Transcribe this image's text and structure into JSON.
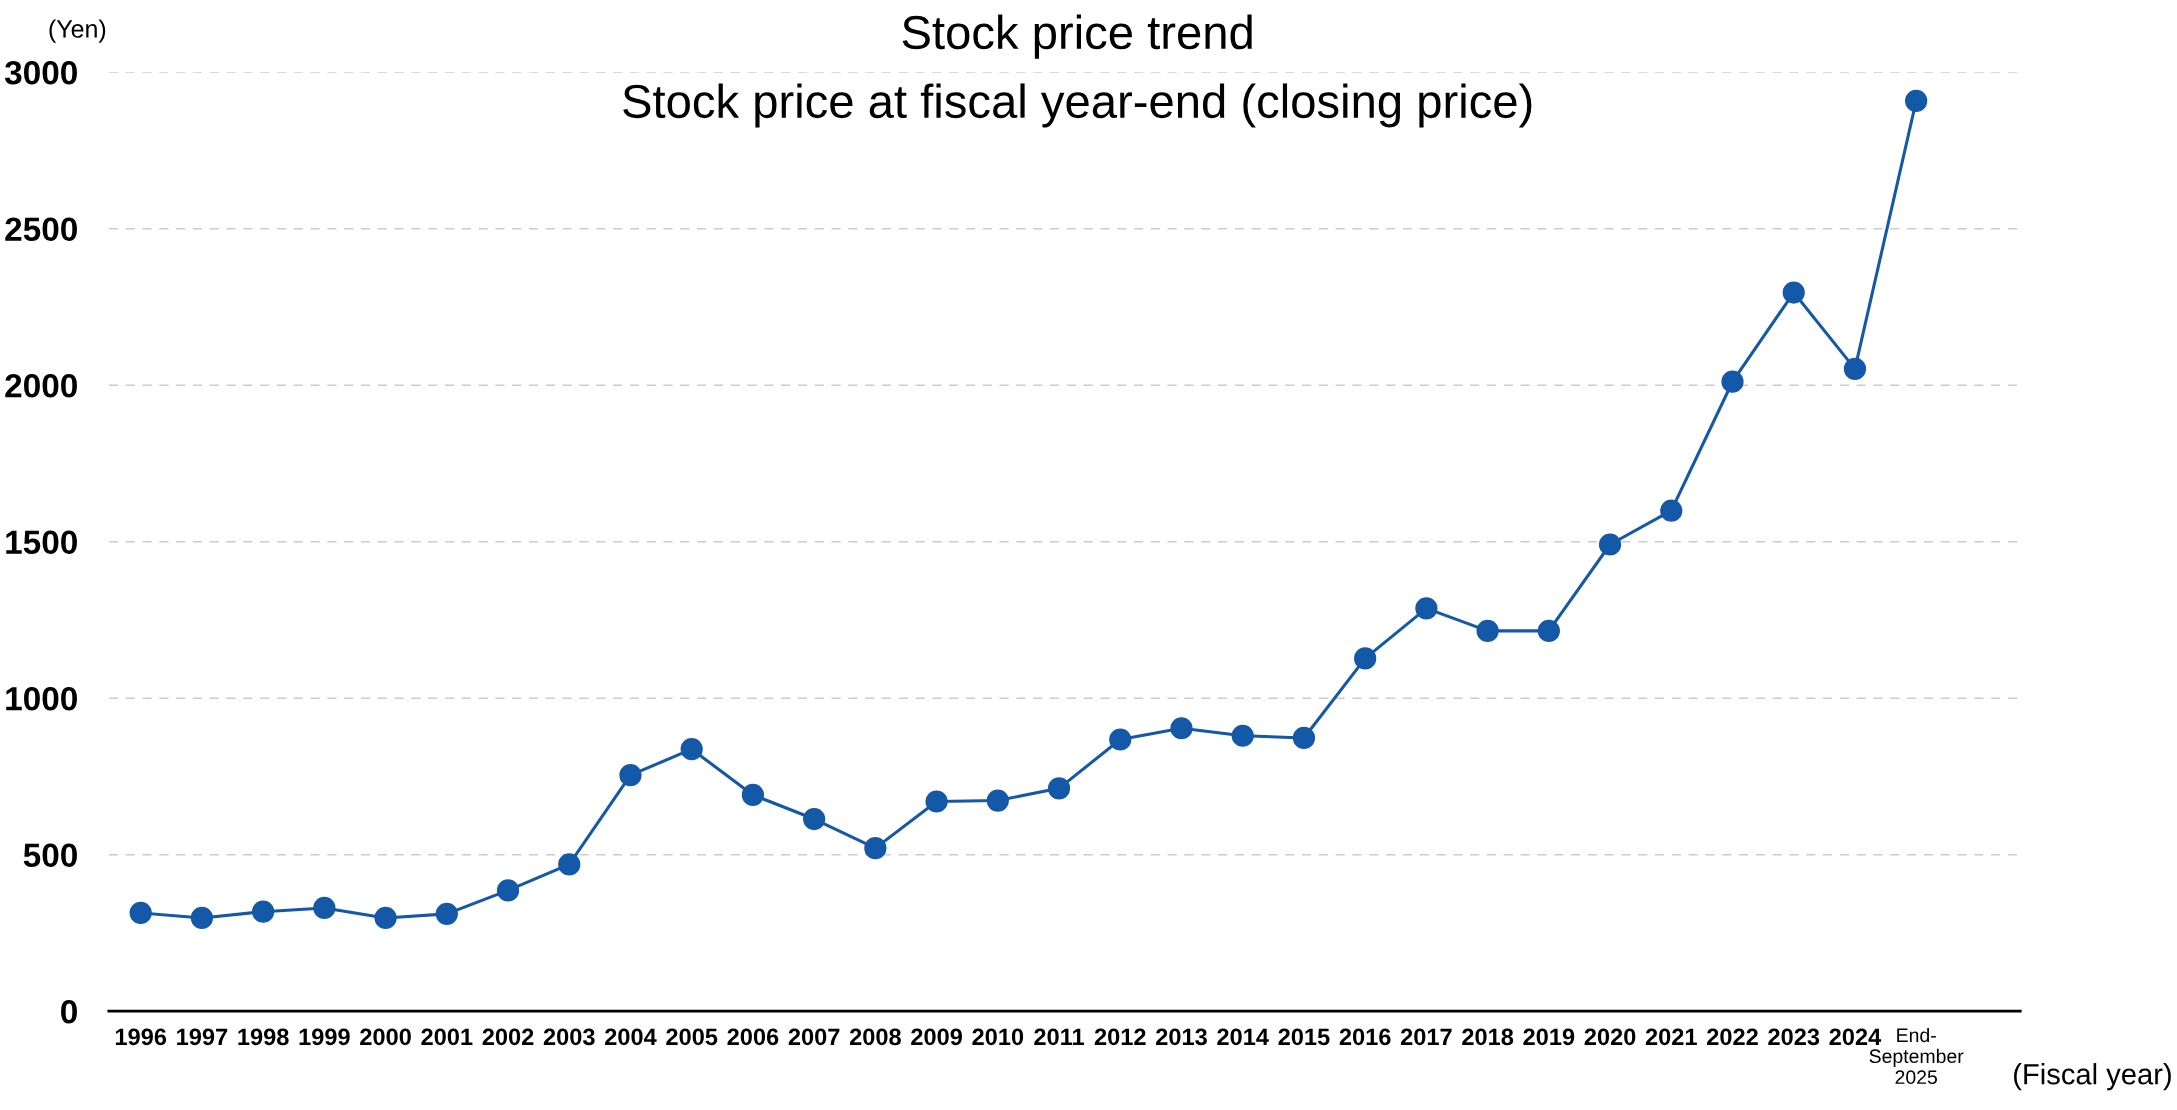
{
  "chart_data": {
    "type": "line",
    "title": "Stock price trend",
    "subtitle": "Stock price at fiscal year-end (closing price)",
    "ylabel": "(Yen)",
    "xlabel": "(Fiscal year)",
    "categories": [
      "1996",
      "1997",
      "1998",
      "1999",
      "2000",
      "2001",
      "2002",
      "2003",
      "2004",
      "2005",
      "2006",
      "2007",
      "2008",
      "2009",
      "2010",
      "2011",
      "2012",
      "2013",
      "2014",
      "2015",
      "2016",
      "2017",
      "2018",
      "2019",
      "2020",
      "2021",
      "2022",
      "2023",
      "2024",
      "End-\nSeptember\n2025"
    ],
    "series": [
      {
        "color": "#1458a8",
        "values": [
          314,
          298,
          318,
          330,
          298,
          311,
          386,
          469,
          754,
          837,
          691,
          614,
          521,
          670,
          673,
          712,
          868,
          904,
          880,
          873,
          1127,
          1287,
          1215,
          1215,
          1491,
          1599,
          2011,
          2296,
          2052,
          2908
        ]
      }
    ],
    "ylim": [
      0,
      3000
    ],
    "yticks": [
      0,
      500,
      1000,
      1500,
      2000,
      2500,
      3000
    ],
    "grid": "y",
    "marker": "circle",
    "line_style": "solid",
    "legend": false
  }
}
